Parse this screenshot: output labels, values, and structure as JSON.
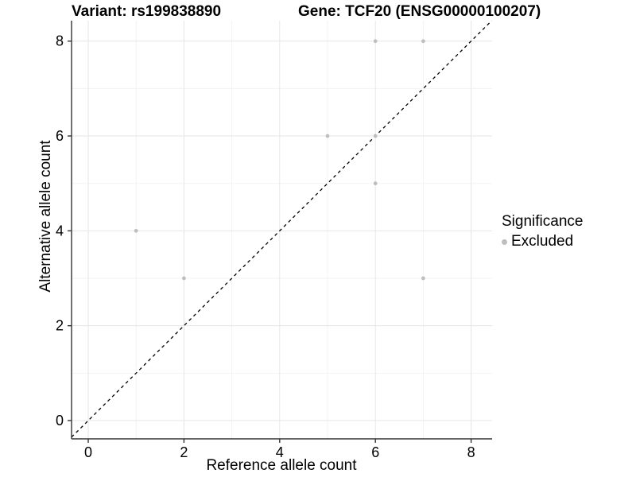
{
  "colors": {
    "background": "#ffffff",
    "point": "#bebebe",
    "grid_major": "#e6e6e6",
    "grid_minor": "#f3f3f3",
    "axis_line": "#333333",
    "tick_mark": "#333333",
    "text": "#000000",
    "reference_line": "#000000"
  },
  "chart_data": {
    "type": "scatter",
    "title_left": "Variant: rs199838890",
    "title_right": "Gene: TCF20 (ENSG00000100207)",
    "xlabel": "Reference allele count",
    "ylabel": "Alternative allele count",
    "xlim": [
      -0.35,
      8.44
    ],
    "ylim": [
      -0.39,
      8.46
    ],
    "x_ticks": [
      0,
      2,
      4,
      6,
      8
    ],
    "y_ticks": [
      0,
      2,
      4,
      6,
      8
    ],
    "x_minor": [
      1,
      3,
      5,
      7
    ],
    "y_minor": [
      1,
      3,
      5,
      7
    ],
    "grid": true,
    "legend": {
      "title": "Significance",
      "position": "right",
      "items": [
        {
          "label": "Excluded",
          "color": "#bebebe"
        }
      ]
    },
    "series": [
      {
        "name": "Excluded",
        "color": "#bebebe",
        "points": [
          [
            1,
            4
          ],
          [
            2,
            3
          ],
          [
            5,
            6
          ],
          [
            6,
            5
          ],
          [
            6,
            6
          ],
          [
            6,
            8
          ],
          [
            7,
            3
          ],
          [
            7,
            8
          ]
        ]
      }
    ],
    "reference_line": {
      "type": "identity",
      "equation": "y = x",
      "style": "dashed",
      "color": "#000000"
    }
  }
}
